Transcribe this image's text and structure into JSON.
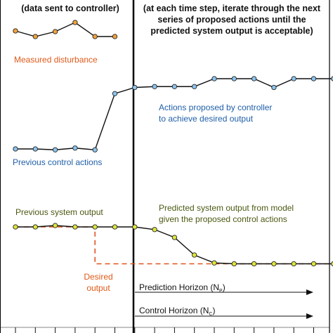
{
  "labels": {
    "top_left_note": "(data sent to controller)",
    "top_right_note_line1": "(at each time step, iterate through the next",
    "top_right_note_line2": "series of proposed actions until the",
    "top_right_note_line3": "predicted system output is acceptable)",
    "measured_disturbance": "Measured disturbance",
    "actions_proposed_line1": "Actions proposed by controller",
    "actions_proposed_line2": "to achieve desired output",
    "previous_control_actions": "Previous control actions",
    "previous_system_output": "Previous system output",
    "predicted_output_line1": "Predicted system output from model",
    "predicted_output_line2": "given the proposed control actions",
    "desired_output_line1": "Desired",
    "desired_output_line2": "output",
    "prediction_horizon": "Prediction Horizon (N",
    "prediction_horizon_sub": "P",
    "prediction_horizon_close": ")",
    "control_horizon": "Control Horizon (N",
    "control_horizon_sub": "C",
    "control_horizon_close": ")"
  },
  "colors": {
    "disturbance_label": "#e05a1a",
    "disturbance_marker": "#f2a33a",
    "control_label": "#1f5fa8",
    "control_marker": "#8cc4ee",
    "output_label": "#4a5a12",
    "output_marker": "#dde63a",
    "desired_line": "#e0531f",
    "line": "#111111"
  },
  "series": {
    "measured_disturbance": [
      0,
      -0.4,
      -0.05,
      0.6,
      -0.4,
      -0.4
    ],
    "previous_control_actions": [
      0,
      0,
      -0.05,
      0.05,
      -0.05
    ],
    "proposed_control_actions": [
      3.15,
      3.5,
      3.55,
      3.55,
      3.55,
      4.0,
      4.0,
      4.0,
      3.5,
      4.0,
      4.0,
      4.0,
      4.0
    ],
    "previous_system_output": [
      0,
      0,
      0.08,
      0,
      0,
      0,
      0
    ],
    "predicted_system_output": [
      0,
      -0.15,
      -0.6,
      -1.6,
      -2.05,
      -2.1,
      -2.1,
      -2.1,
      -2.1,
      -2.1,
      -2.1
    ],
    "desired_output": [
      0,
      0,
      0,
      0,
      -2.1,
      -2.1,
      -2.1,
      -2.1,
      -2.1,
      -2.1,
      -2.1,
      -2.1,
      -2.1,
      -2.1,
      -2.1,
      -2.1,
      -2.1,
      -2.1
    ]
  }
}
